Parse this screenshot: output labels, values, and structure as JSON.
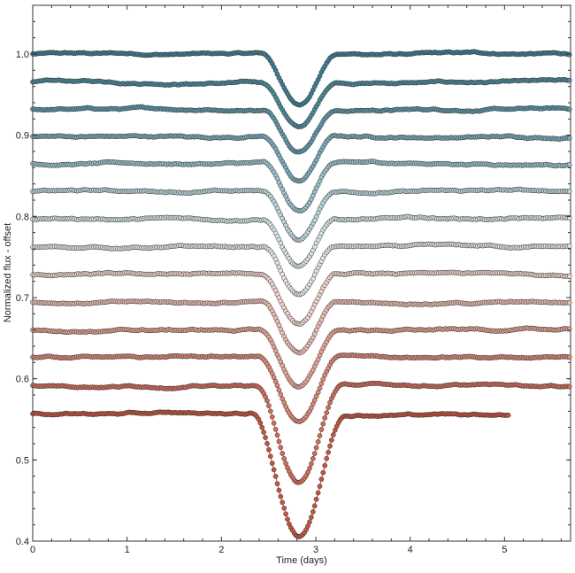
{
  "chart_data": {
    "type": "line",
    "title": "",
    "xlabel": "Time (days)",
    "ylabel": "Normalized flux - offset",
    "xlim": [
      0,
      5.7
    ],
    "ylim": [
      0.4,
      1.06
    ],
    "x_ticks": [
      0,
      1,
      2,
      3,
      4,
      5
    ],
    "y_ticks": [
      0.4,
      0.5,
      0.6,
      0.7,
      0.8,
      0.9,
      1.0
    ],
    "x_tick_labels": [
      "0",
      "1",
      "2",
      "3",
      "4",
      "5"
    ],
    "y_tick_labels": [
      "0.4",
      "0.5",
      "0.6",
      "0.7",
      "0.8",
      "0.9",
      "1.0"
    ],
    "grid": false,
    "marker": "circle",
    "transit_center": 2.82,
    "series": [
      {
        "baseline": 1.0,
        "depth": 0.063,
        "width": 0.4,
        "x_end": 5.7,
        "color": "#3f7f93"
      },
      {
        "baseline": 0.965,
        "depth": 0.055,
        "width": 0.4,
        "x_end": 5.7,
        "color": "#4d8a9c"
      },
      {
        "baseline": 0.932,
        "depth": 0.05,
        "width": 0.38,
        "x_end": 5.7,
        "color": "#5e97a8"
      },
      {
        "baseline": 0.898,
        "depth": 0.055,
        "width": 0.38,
        "x_end": 5.7,
        "color": "#7aabba"
      },
      {
        "baseline": 0.865,
        "depth": 0.06,
        "width": 0.38,
        "x_end": 5.7,
        "color": "#9bc1cc"
      },
      {
        "baseline": 0.831,
        "depth": 0.06,
        "width": 0.38,
        "x_end": 5.7,
        "color": "#bcd5dc"
      },
      {
        "baseline": 0.797,
        "depth": 0.06,
        "width": 0.38,
        "x_end": 5.7,
        "color": "#d7e3e6"
      },
      {
        "baseline": 0.762,
        "depth": 0.06,
        "width": 0.38,
        "x_end": 5.7,
        "color": "#e6e2e1"
      },
      {
        "baseline": 0.728,
        "depth": 0.06,
        "width": 0.4,
        "x_end": 5.7,
        "color": "#efd3cd"
      },
      {
        "baseline": 0.694,
        "depth": 0.062,
        "width": 0.4,
        "x_end": 5.7,
        "color": "#eabbb1"
      },
      {
        "baseline": 0.66,
        "depth": 0.07,
        "width": 0.42,
        "x_end": 5.7,
        "color": "#e3a294"
      },
      {
        "baseline": 0.627,
        "depth": 0.08,
        "width": 0.44,
        "x_end": 5.7,
        "color": "#db8877"
      },
      {
        "baseline": 0.592,
        "depth": 0.12,
        "width": 0.46,
        "x_end": 5.7,
        "color": "#d06e5a"
      },
      {
        "baseline": 0.557,
        "depth": 0.15,
        "width": 0.5,
        "x_end": 5.05,
        "color": "#c45540"
      }
    ]
  }
}
